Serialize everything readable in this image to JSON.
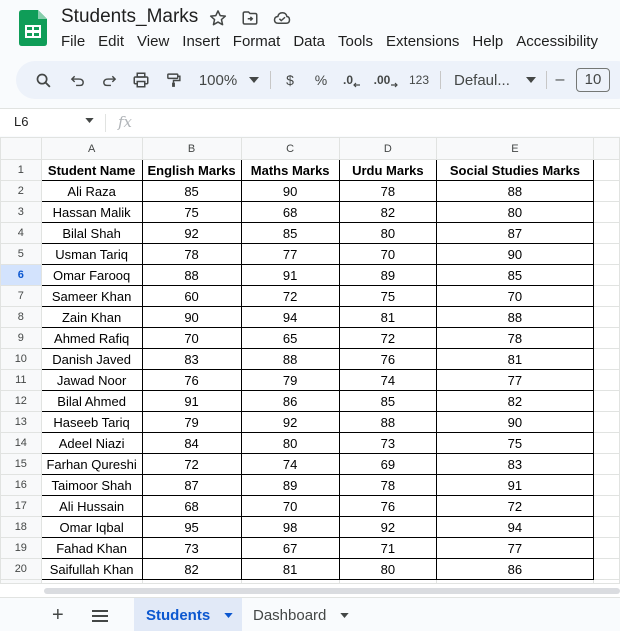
{
  "app": {
    "doc_title": "Students_Marks",
    "menu": [
      "File",
      "Edit",
      "View",
      "Insert",
      "Format",
      "Data",
      "Tools",
      "Extensions",
      "Help",
      "Accessibility"
    ]
  },
  "toolbar": {
    "zoom": "100%",
    "currency": "$",
    "percent": "%",
    "dec_decrease": ".0",
    "dec_increase": ".00",
    "number_format": "123",
    "font": "Defaul...",
    "font_size_minus": "–",
    "font_size": "10"
  },
  "formula_bar": {
    "cell_ref": "L6",
    "fx": "fx"
  },
  "grid": {
    "columns": [
      "A",
      "B",
      "C",
      "D",
      "E"
    ],
    "headers": [
      "Student Name",
      "English Marks",
      "Maths Marks",
      "Urdu Marks",
      "Social Studies Marks"
    ],
    "rows": [
      [
        "Ali Raza",
        "85",
        "90",
        "78",
        "88"
      ],
      [
        "Hassan Malik",
        "75",
        "68",
        "82",
        "80"
      ],
      [
        "Bilal Shah",
        "92",
        "85",
        "80",
        "87"
      ],
      [
        "Usman Tariq",
        "78",
        "77",
        "70",
        "90"
      ],
      [
        "Omar Farooq",
        "88",
        "91",
        "89",
        "85"
      ],
      [
        "Sameer Khan",
        "60",
        "72",
        "75",
        "70"
      ],
      [
        "Zain Khan",
        "90",
        "94",
        "81",
        "88"
      ],
      [
        "Ahmed Rafiq",
        "70",
        "65",
        "72",
        "78"
      ],
      [
        "Danish Javed",
        "83",
        "88",
        "76",
        "81"
      ],
      [
        "Jawad Noor",
        "76",
        "79",
        "74",
        "77"
      ],
      [
        "Bilal Ahmed",
        "91",
        "86",
        "85",
        "82"
      ],
      [
        "Haseeb Tariq",
        "79",
        "92",
        "88",
        "90"
      ],
      [
        "Adeel Niazi",
        "84",
        "80",
        "73",
        "75"
      ],
      [
        "Farhan Qureshi",
        "72",
        "74",
        "69",
        "83"
      ],
      [
        "Taimoor Shah",
        "87",
        "89",
        "78",
        "91"
      ],
      [
        "Ali Hussain",
        "68",
        "70",
        "76",
        "72"
      ],
      [
        "Omar Iqbal",
        "95",
        "98",
        "92",
        "94"
      ],
      [
        "Fahad Khan",
        "73",
        "67",
        "71",
        "77"
      ],
      [
        "Saifullah Khan",
        "82",
        "81",
        "80",
        "86"
      ]
    ],
    "active_row": "6"
  },
  "sheets": {
    "tabs": [
      "Students",
      "Dashboard"
    ],
    "active": "Students"
  },
  "colors": {
    "accent": "#0b57d0",
    "active_tab_bg": "#e1e9f7",
    "sheets_green": "#0f9d58"
  },
  "icons": {
    "star": "star-icon",
    "move": "move-to-folder-icon",
    "cloud": "cloud-status-icon"
  }
}
